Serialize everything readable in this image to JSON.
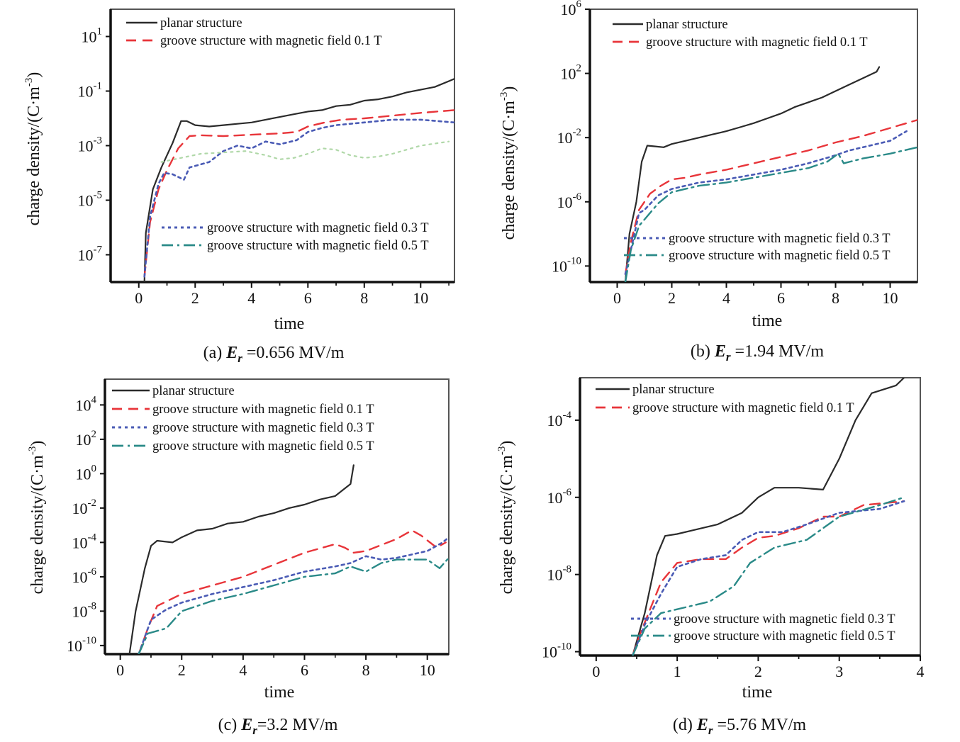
{
  "colors": {
    "planar": "#2b2b2b",
    "g01": "#e8353a",
    "g03": "#4a5bb5",
    "g05": "#2a8a88",
    "g05_a": "#b0d8a8"
  },
  "legend_labels": {
    "planar": "planar structure",
    "g01": "groove structure with magnetic field 0.1 T",
    "g03": "groove structure with magnetic field 0.3 T",
    "g05": "groove structure with magnetic field 0.5 T"
  },
  "chart_data": [
    {
      "id": "a",
      "type": "line",
      "y_scale": "log",
      "xlabel": "time",
      "ylabel": "charge density/(C·m-3)",
      "caption": {
        "pre": "(a) ",
        "sym": "E",
        "sub": "r",
        "post": " =0.656 MV/m"
      },
      "xlim": [
        -1,
        11.2
      ],
      "ylim_exp": [
        -8,
        2
      ],
      "x_ticks": [
        0,
        2,
        4,
        6,
        8,
        10
      ],
      "y_ticks": [
        {
          "base": "10",
          "exp": "1",
          "v": 1
        },
        {
          "base": "10",
          "exp": "-1",
          "v": -1
        },
        {
          "base": "10",
          "exp": "-3",
          "v": -3
        },
        {
          "base": "10",
          "exp": "-5",
          "v": -5
        },
        {
          "base": "10",
          "exp": "-7",
          "v": -7
        }
      ],
      "series": [
        {
          "key": "planar",
          "x": [
            0.2,
            0.3,
            0.5,
            0.8,
            1.2,
            1.5,
            1.7,
            2.0,
            2.5,
            3.0,
            3.5,
            4.0,
            5.0,
            5.5,
            6.0,
            6.5,
            7.0,
            7.5,
            8.0,
            8.5,
            9.0,
            9.5,
            10.0,
            10.5,
            11.2
          ],
          "y": [
            -8.0,
            -6.0,
            -4.6,
            -3.8,
            -2.9,
            -2.1,
            -2.1,
            -2.25,
            -2.3,
            -2.25,
            -2.2,
            -2.15,
            -1.9,
            -1.85,
            -1.8,
            -1.7,
            -1.55,
            -1.5,
            -1.35,
            -1.3,
            -1.2,
            -1.05,
            -0.95,
            -0.8,
            -0.6
          ]
        },
        {
          "key": "g01",
          "x": [
            0.2,
            0.4,
            0.7,
            1.0,
            1.4,
            1.8,
            2.2,
            3.0,
            4.0,
            5.0,
            5.6,
            6.0,
            6.6,
            7.2,
            8.0,
            9.0,
            10.0,
            11.2
          ]
        },
        {
          "key": "g03"
        },
        {
          "key": "g05_a"
        },
        {
          "key": "g05"
        }
      ]
    },
    {
      "id": "b",
      "type": "line",
      "y_scale": "log",
      "xlabel": "time",
      "ylabel": "charge density/(C·m-3)",
      "caption": {
        "pre": "(b) ",
        "sym": "E",
        "sub": "r",
        "post": " =1.94 MV/m"
      },
      "xlim": [
        -1,
        11.0
      ],
      "ylim_exp": [
        -11,
        6
      ],
      "x_ticks": [
        0,
        2,
        4,
        6,
        8,
        10
      ],
      "y_ticks": [
        {
          "base": "10",
          "exp": "6",
          "v": 6
        },
        {
          "base": "10",
          "exp": "2",
          "v": 2
        },
        {
          "base": "10",
          "exp": "-2",
          "v": -2
        },
        {
          "base": "10",
          "exp": "-6",
          "v": -6
        },
        {
          "base": "10",
          "exp": "-10",
          "v": -10
        }
      ],
      "series": [
        {
          "key": "planar"
        },
        {
          "key": "g01"
        },
        {
          "key": "g03"
        },
        {
          "key": "g05"
        }
      ]
    },
    {
      "id": "c",
      "type": "line",
      "y_scale": "log",
      "xlabel": "time",
      "ylabel": "charge density/(C·m-3)",
      "caption": {
        "pre": "(c) ",
        "sym": "E",
        "sub": "r",
        "post": "=3.2 MV/m"
      },
      "xlim": [
        -0.5,
        10.7
      ],
      "ylim_exp": [
        -10.5,
        5.5
      ],
      "x_ticks": [
        0,
        2,
        4,
        6,
        8,
        10
      ],
      "y_ticks": [
        {
          "base": "10",
          "exp": "4",
          "v": 4
        },
        {
          "base": "10",
          "exp": "2",
          "v": 2
        },
        {
          "base": "10",
          "exp": "0",
          "v": 0
        },
        {
          "base": "10",
          "exp": "-2",
          "v": -2
        },
        {
          "base": "10",
          "exp": "-4",
          "v": -4
        },
        {
          "base": "10",
          "exp": "-6",
          "v": -6
        },
        {
          "base": "10",
          "exp": "-8",
          "v": -8
        },
        {
          "base": "10",
          "exp": "-10",
          "v": -10
        }
      ],
      "series": [
        {
          "key": "planar"
        },
        {
          "key": "g01"
        },
        {
          "key": "g03"
        },
        {
          "key": "g05"
        }
      ]
    },
    {
      "id": "d",
      "type": "line",
      "y_scale": "log",
      "xlabel": "time",
      "ylabel": "charge density/(C·m-3)",
      "caption": {
        "pre": "(d) ",
        "sym": "E",
        "sub": "r",
        "post": " =5.76 MV/m"
      },
      "xlim": [
        -0.2,
        4.0
      ],
      "ylim_exp": [
        -10.1,
        -2.9
      ],
      "x_ticks": [
        0,
        1,
        2,
        3,
        4
      ],
      "y_ticks": [
        {
          "base": "10",
          "exp": "-4",
          "v": -4
        },
        {
          "base": "10",
          "exp": "-6",
          "v": -6
        },
        {
          "base": "10",
          "exp": "-8",
          "v": -8
        },
        {
          "base": "10",
          "exp": "-10",
          "v": -10
        }
      ],
      "series": [
        {
          "key": "planar"
        },
        {
          "key": "g01"
        },
        {
          "key": "g03"
        },
        {
          "key": "g05"
        }
      ]
    }
  ]
}
